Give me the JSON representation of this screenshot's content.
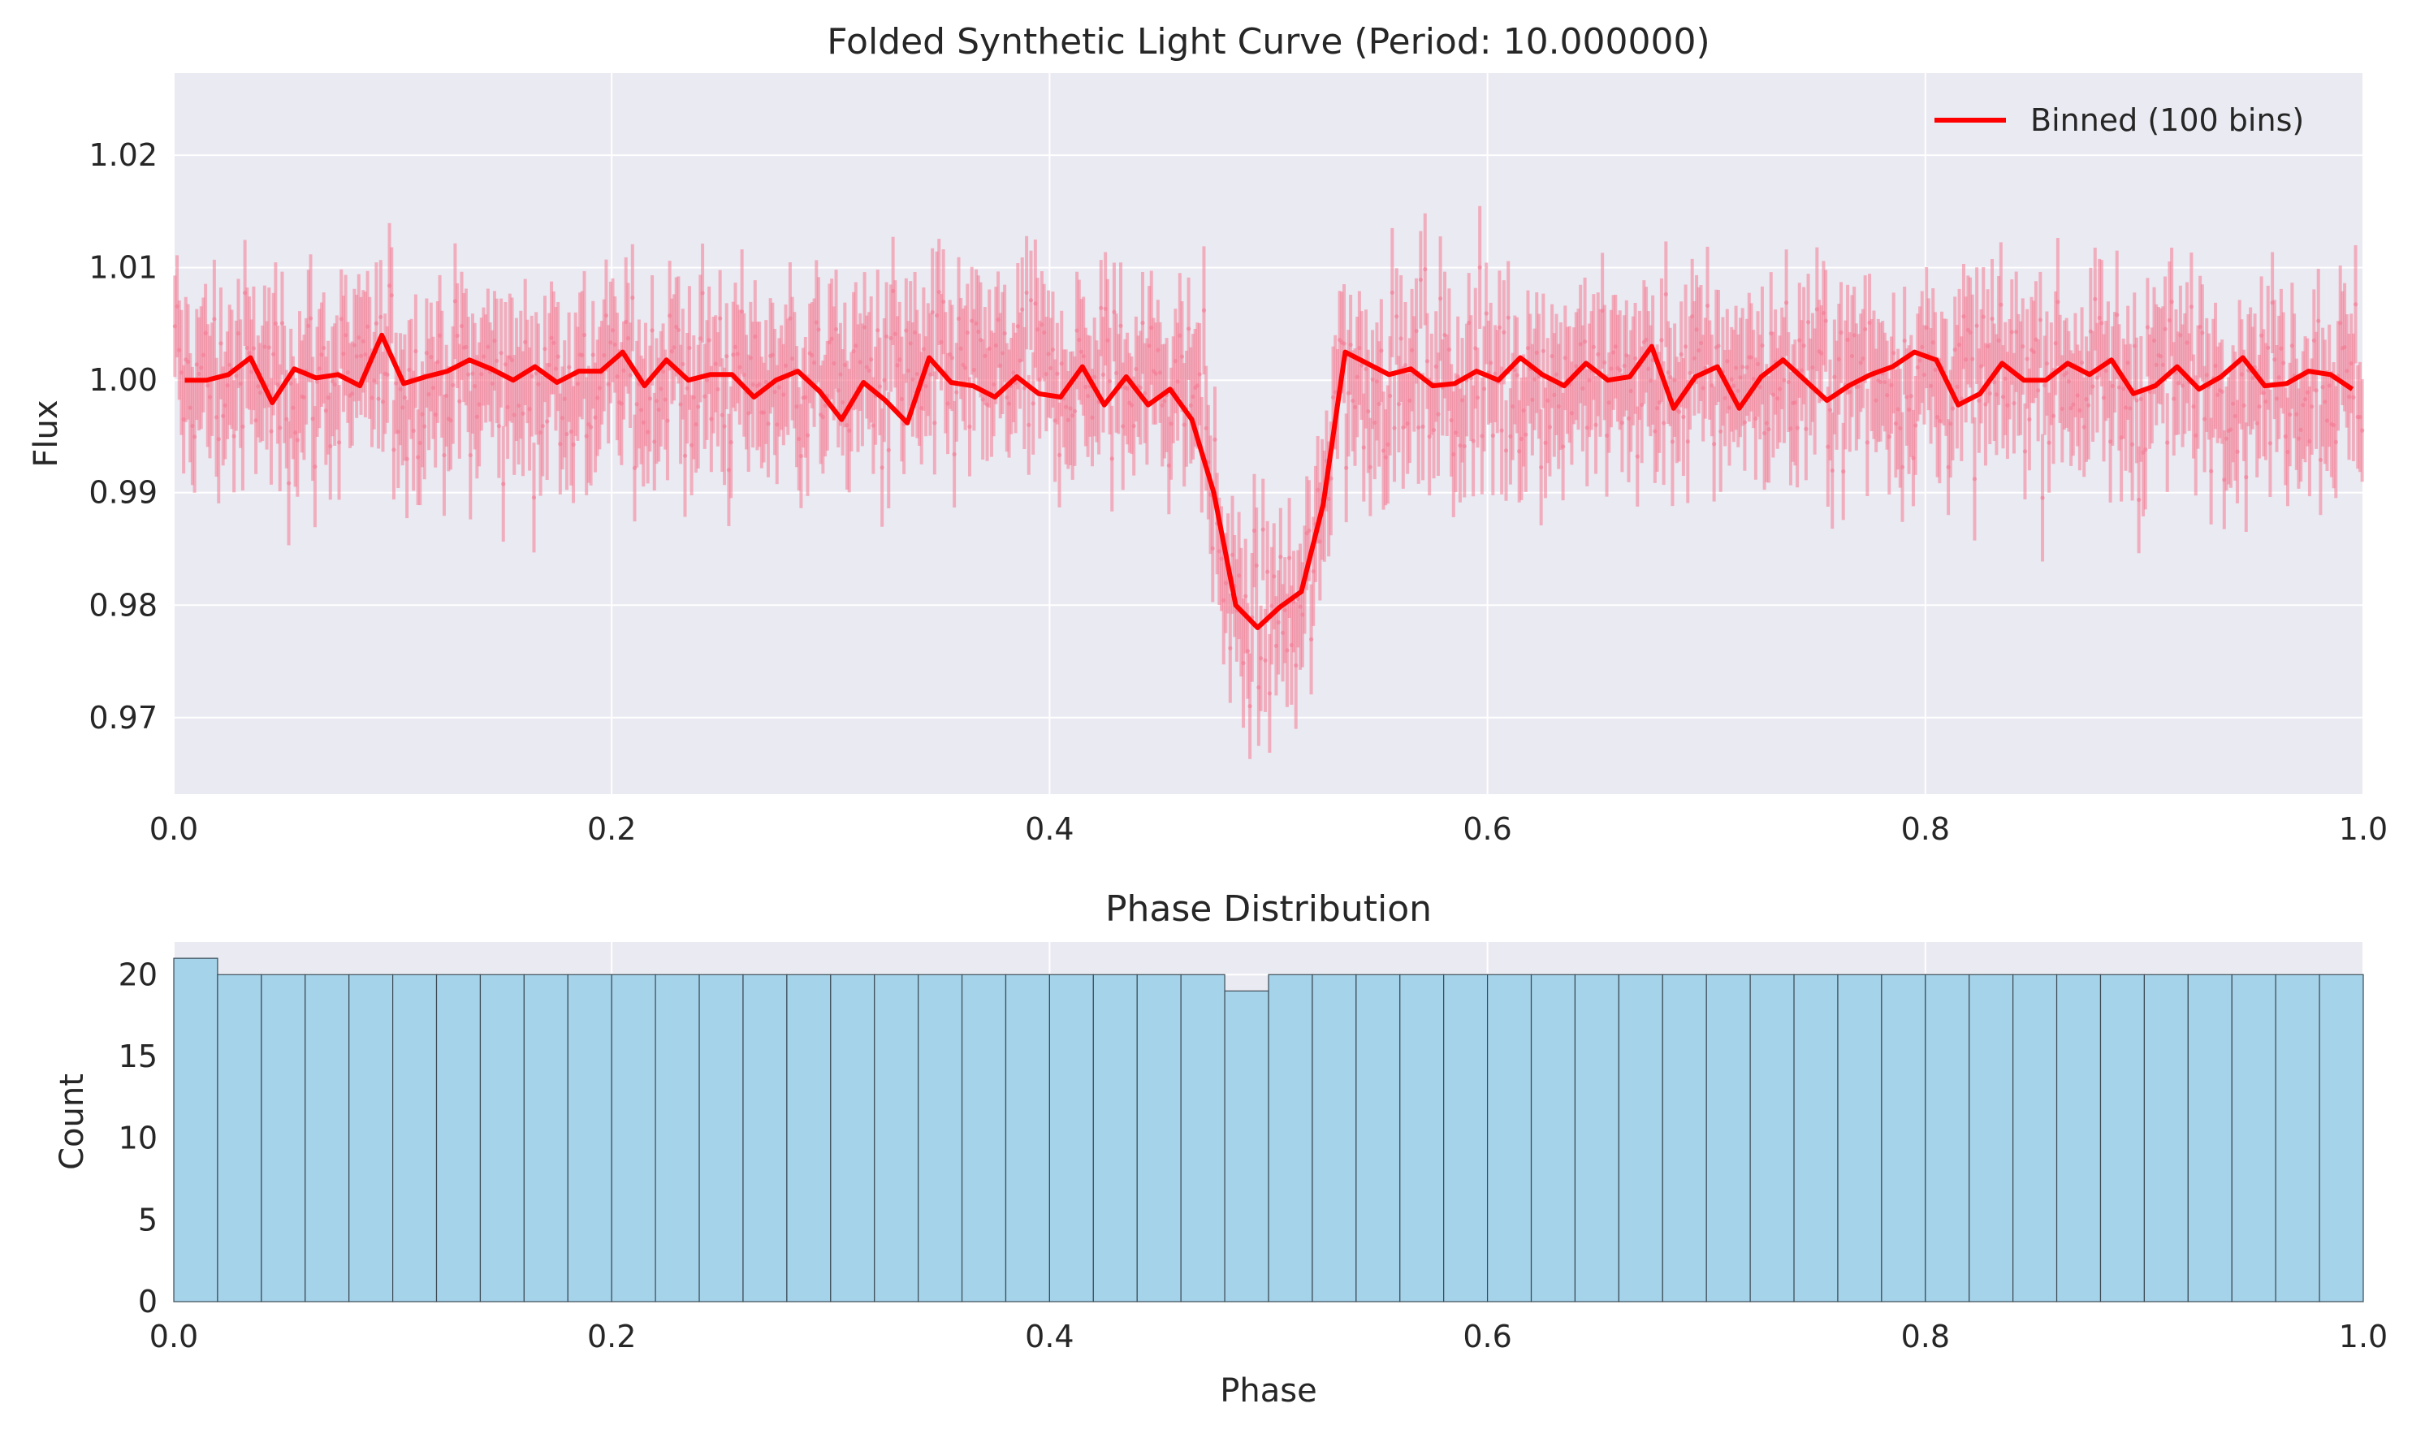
{
  "chart_data": [
    {
      "type": "line",
      "title": "Folded Synthetic Light Curve (Period: 10.000000)",
      "xlabel": "",
      "ylabel": "Flux",
      "xlim": [
        0.0,
        1.0
      ],
      "ylim": [
        0.9632,
        1.0273
      ],
      "xticks": [
        "0.0",
        "0.2",
        "0.4",
        "0.6",
        "0.8",
        "1.0"
      ],
      "yticks": [
        "0.97",
        "0.98",
        "0.99",
        "1.00",
        "1.01",
        "1.02"
      ],
      "grid": true,
      "legend": {
        "position": "top-right",
        "entries": [
          "Binned (100 bins)"
        ]
      },
      "colors": {
        "raw": "#f47a92",
        "binned": "#ff0000",
        "background": "#eaeaf2"
      },
      "raw_data": {
        "points": 1000,
        "x_range": [
          0.0,
          1.0
        ],
        "baseline": 1.0,
        "transit": {
          "phase_start": 0.47,
          "phase_end": 0.53,
          "flux_min": 0.978
        },
        "flux_scatter": 0.004,
        "error_halfwidth": 0.005
      },
      "series": [
        {
          "name": "Binned (100 bins)",
          "x": [
            0.005,
            0.015,
            0.025,
            0.035,
            0.045,
            0.055,
            0.065,
            0.075,
            0.085,
            0.095,
            0.105,
            0.115,
            0.125,
            0.135,
            0.145,
            0.155,
            0.165,
            0.175,
            0.185,
            0.195,
            0.205,
            0.215,
            0.225,
            0.235,
            0.245,
            0.255,
            0.265,
            0.275,
            0.285,
            0.295,
            0.305,
            0.315,
            0.325,
            0.335,
            0.345,
            0.355,
            0.365,
            0.375,
            0.385,
            0.395,
            0.405,
            0.415,
            0.425,
            0.435,
            0.445,
            0.455,
            0.465,
            0.475,
            0.485,
            0.495,
            0.505,
            0.515,
            0.525,
            0.535,
            0.545,
            0.555,
            0.565,
            0.575,
            0.585,
            0.595,
            0.605,
            0.615,
            0.625,
            0.635,
            0.645,
            0.655,
            0.665,
            0.675,
            0.685,
            0.695,
            0.705,
            0.715,
            0.725,
            0.735,
            0.745,
            0.755,
            0.765,
            0.775,
            0.785,
            0.795,
            0.805,
            0.815,
            0.825,
            0.835,
            0.845,
            0.855,
            0.865,
            0.875,
            0.885,
            0.895,
            0.905,
            0.915,
            0.925,
            0.935,
            0.945,
            0.955,
            0.965,
            0.975,
            0.985,
            0.995
          ],
          "values": [
            1.0,
            1.0,
            1.0005,
            1.002,
            0.998,
            1.001,
            1.0002,
            1.0005,
            0.9995,
            1.004,
            0.9997,
            1.0003,
            1.0008,
            1.0018,
            1.001,
            1.0,
            1.0012,
            0.9998,
            1.0008,
            1.0008,
            1.0025,
            0.9995,
            1.0018,
            1.0,
            1.0005,
            1.0005,
            0.9985,
            1.0,
            1.0008,
            0.999,
            0.9965,
            0.9998,
            0.9982,
            0.9962,
            1.002,
            0.9998,
            0.9995,
            0.9985,
            1.0003,
            0.9988,
            0.9985,
            1.0012,
            0.9978,
            1.0003,
            0.9978,
            0.9992,
            0.9965,
            0.99,
            0.98,
            0.978,
            0.9798,
            0.9812,
            0.989,
            1.0025,
            1.0015,
            1.0005,
            1.001,
            0.9995,
            0.9997,
            1.0008,
            1.0,
            1.002,
            1.0005,
            0.9995,
            1.0015,
            1.0,
            1.0003,
            1.003,
            0.9975,
            1.0003,
            1.0012,
            0.9975,
            1.0003,
            1.0018,
            1.0,
            0.9982,
            0.9995,
            1.0005,
            1.0012,
            1.0025,
            1.0018,
            0.9978,
            0.9988,
            1.0015,
            1.0,
            1.0,
            1.0015,
            1.0005,
            1.0018,
            0.9988,
            0.9995,
            1.0012,
            0.9992,
            1.0003,
            1.002,
            0.9995,
            0.9997,
            1.0008,
            1.0005,
            0.9992
          ]
        }
      ]
    },
    {
      "type": "bar",
      "title": "Phase Distribution",
      "xlabel": "Phase",
      "ylabel": "Count",
      "xlim": [
        0.0,
        1.0
      ],
      "ylim": [
        0,
        22
      ],
      "xticks": [
        "0.0",
        "0.2",
        "0.4",
        "0.6",
        "0.8",
        "1.0"
      ],
      "yticks": [
        "0",
        "5",
        "10",
        "15",
        "20"
      ],
      "grid": true,
      "colors": {
        "bar": "#a5d3ea",
        "edge": "#3b4a55",
        "background": "#eaeaf2"
      },
      "bins": 50,
      "bin_width": 0.02,
      "values": [
        21,
        20,
        20,
        20,
        20,
        20,
        20,
        20,
        20,
        20,
        20,
        20,
        20,
        20,
        20,
        20,
        20,
        20,
        20,
        20,
        20,
        20,
        20,
        20,
        19,
        20,
        20,
        20,
        20,
        20,
        20,
        20,
        20,
        20,
        20,
        20,
        20,
        20,
        20,
        20,
        20,
        20,
        20,
        20,
        20,
        20,
        20,
        20,
        20,
        20
      ]
    }
  ]
}
